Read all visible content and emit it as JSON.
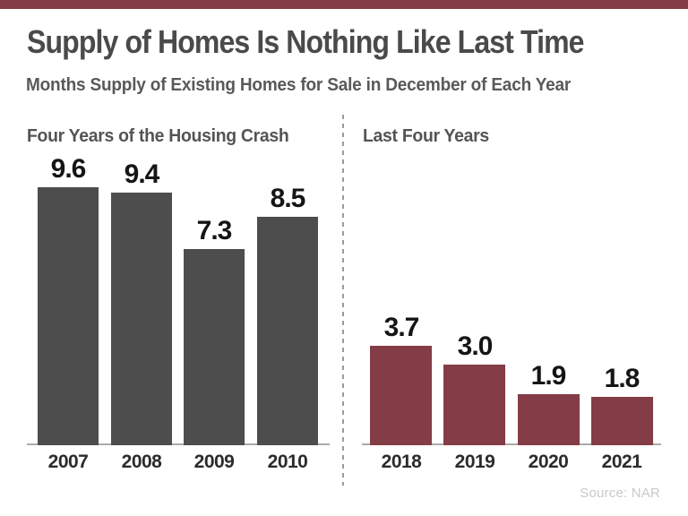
{
  "page": {
    "title": "Supply of Homes Is Nothing Like Last Time",
    "subtitle": "Months Supply of Existing Homes for Sale in December of Each Year",
    "source": "Source: NAR",
    "accent_color": "#843C46",
    "bar_gray_color": "#4D4D4D",
    "divider_color": "#9A9A9A"
  },
  "chart_data": [
    {
      "type": "bar",
      "title": "Four Years of the Housing Crash",
      "categories": [
        "2007",
        "2008",
        "2009",
        "2010"
      ],
      "values": [
        9.6,
        9.4,
        7.3,
        8.5
      ],
      "value_labels": [
        "9.6",
        "9.4",
        "7.3",
        "8.5"
      ],
      "bar_color": "#4D4D4D",
      "xlabel": "",
      "ylabel": "",
      "ylim": [
        0,
        10.5
      ],
      "grid": false,
      "data_labels": true,
      "legend": false
    },
    {
      "type": "bar",
      "title": "Last Four Years",
      "categories": [
        "2018",
        "2019",
        "2020",
        "2021"
      ],
      "values": [
        3.7,
        3.0,
        1.9,
        1.8
      ],
      "value_labels": [
        "3.7",
        "3.0",
        "1.9",
        "1.8"
      ],
      "bar_color": "#843C46",
      "xlabel": "",
      "ylabel": "",
      "ylim": [
        0,
        10.5
      ],
      "grid": false,
      "data_labels": true,
      "legend": false
    }
  ]
}
